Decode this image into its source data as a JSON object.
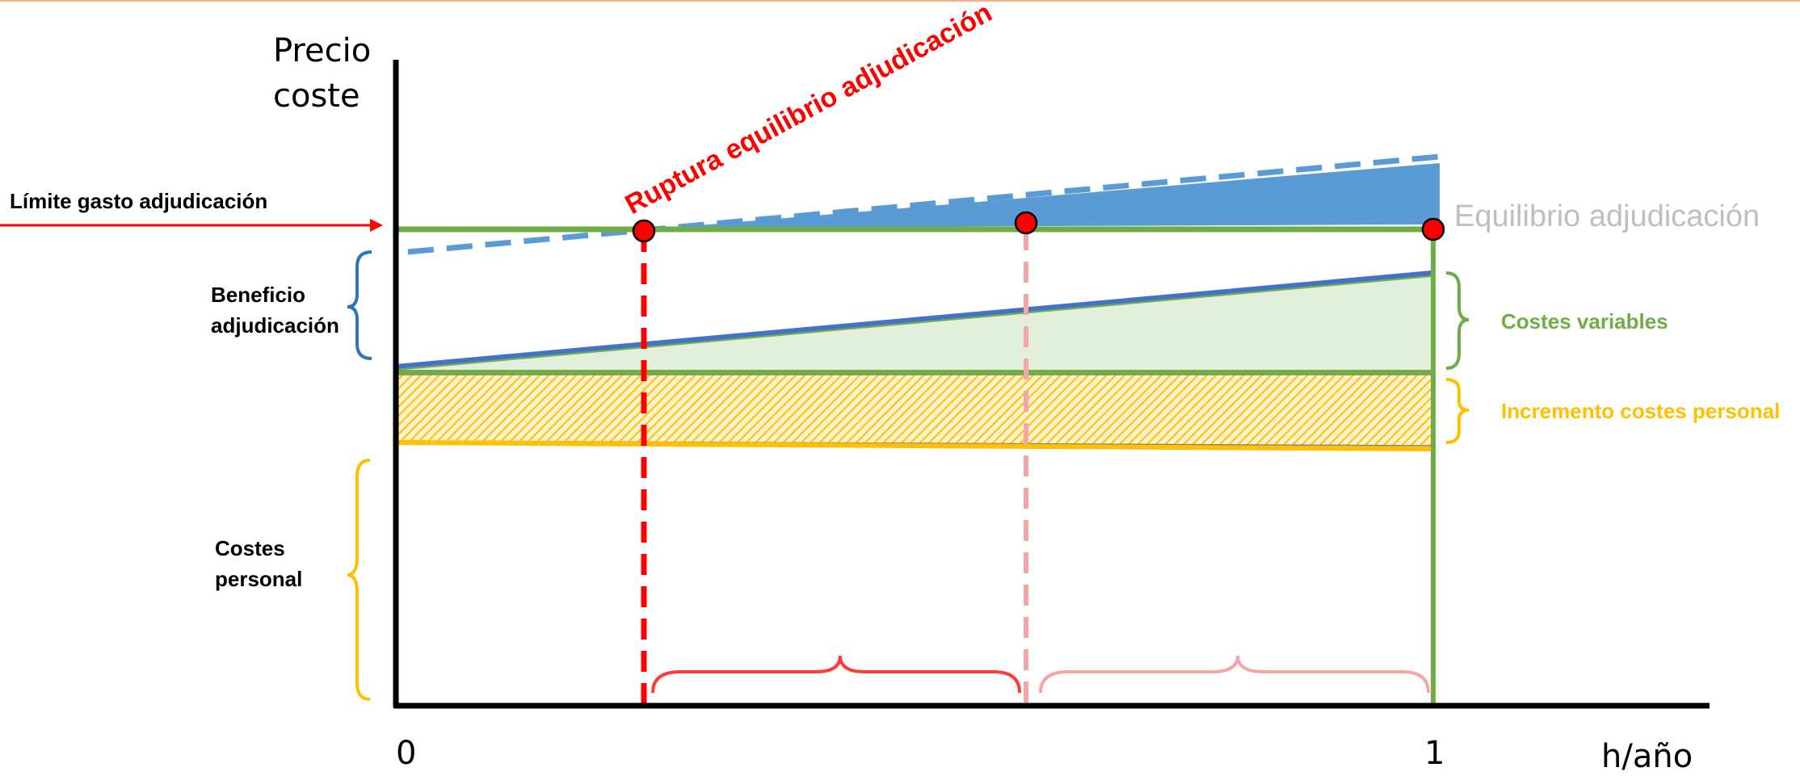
{
  "axis": {
    "y_label_line1": "Precio",
    "y_label_line2": "coste",
    "x_label": "h/año",
    "x_tick_start": "0",
    "x_tick_end": "1"
  },
  "labels": {
    "limit": "Límite gasto adjudicación",
    "rupture": "Ruptura equilibrio adjudicación",
    "equilibrium": "Equilibrio adjudicación",
    "benefit_line1": "Beneficio",
    "benefit_line2": "adjudicación",
    "variable_costs": "Costes variables",
    "personnel_increase": "Incremento costes personal",
    "personnel_line1": "Costes",
    "personnel_line2": "personal"
  },
  "colors": {
    "top_rule": "#f4b183",
    "axis": "#000000",
    "equilibrium_line": "#70ad47",
    "cost_line": "#4472c4",
    "price_area": "#5b9bd5",
    "variable_fill": "#e2efda",
    "hatch_fill": "#ffc000",
    "personnel_line": "#ffc000",
    "rupture_red": "#ff0000",
    "rupture_light": "#f4a6a6",
    "equilibrium_text": "#bfbfbf",
    "variable_text": "#70ad47",
    "personnel_text": "#ffc000",
    "benefit_brace": "#2e75b6",
    "personnel_brace": "#ffc000"
  }
}
